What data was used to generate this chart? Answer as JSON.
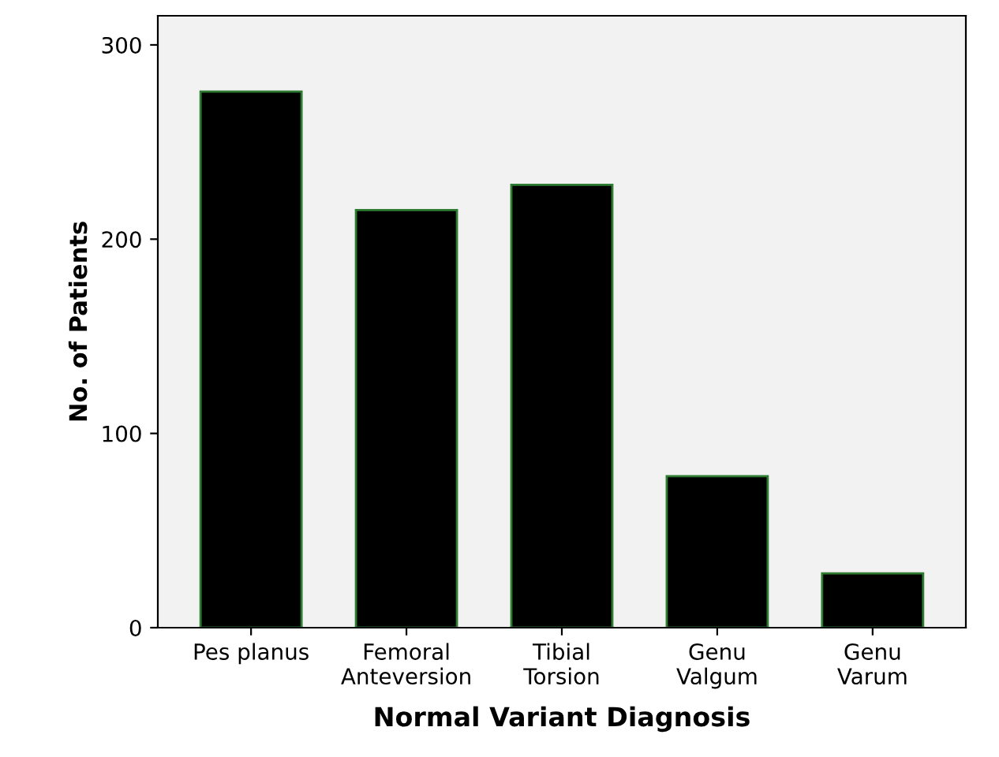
{
  "chart_data": {
    "type": "bar",
    "xlabel": "Normal Variant Diagnosis",
    "ylabel": "No. of Patients",
    "categories": [
      "Pes planus",
      "Femoral\nAnteversion",
      "Tibial\nTorsion",
      "Genu\nValgum",
      "Genu\nVarum"
    ],
    "values": [
      276,
      215,
      228,
      78,
      28
    ],
    "color": "#000000",
    "ylim": [
      0,
      315
    ],
    "yticks": [
      0,
      100,
      200,
      300
    ],
    "grid": false
  }
}
